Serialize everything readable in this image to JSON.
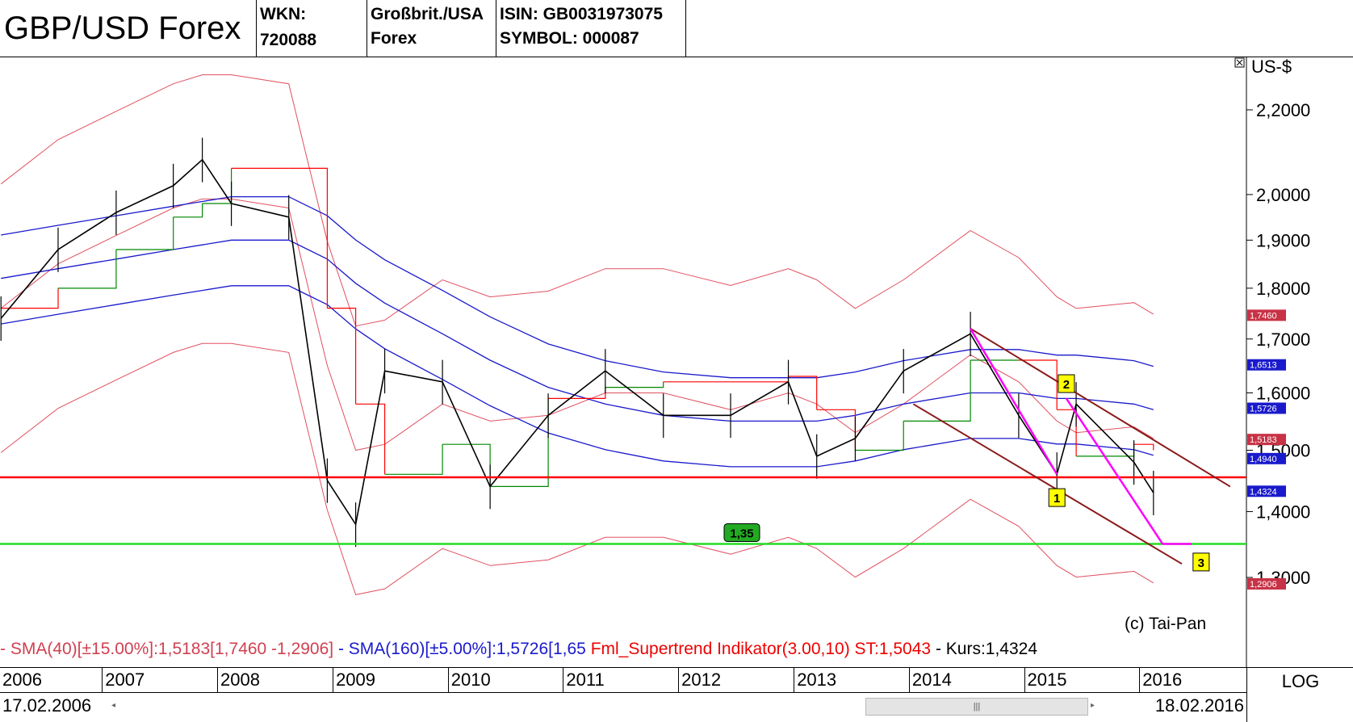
{
  "header": {
    "title": "GBP/USD Forex",
    "wkn": "WKN: 720088",
    "country_line1": "Großbrit./USA",
    "country_line2": "Forex",
    "isin": "ISIN: GB0031973075",
    "symbol": "SYMBOL: 000087"
  },
  "legend": {
    "sma40": "- SMA(40)[±15.00%]:1,5183[1,7460 -1,2906]",
    "sma160": "- SMA(160)[±5.00%]:1,5726[1,65",
    "supertrend": "Fml_Supertrend Indikator(3.00,10) ST:1,5043",
    "kurs": "- Kurs:1,4324"
  },
  "copyright": "(c) Tai-Pan",
  "x_axis": {
    "years": [
      "2006",
      "2007",
      "2008",
      "2009",
      "2010",
      "2011",
      "2012",
      "2013",
      "2014",
      "2015",
      "2016"
    ],
    "start_date": "17.02.2006",
    "end_date": "18.02.2016",
    "scale_label": "LOG"
  },
  "colors": {
    "price": "#000000",
    "sma40_band": "#e05060",
    "sma160_band": "#1a1acc",
    "supertrend_down": "#ff0000",
    "supertrend_up": "#008800",
    "support_red": "#ff0000",
    "support_green": "#22dd22",
    "channel": "#8b1a1a",
    "projection": "#ff00ff"
  },
  "chart_data": {
    "type": "line",
    "title": "GBP/USD Forex",
    "ylabel": "US-$",
    "yscale": "log",
    "ylim": [
      1.28,
      2.35
    ],
    "y_ticks": [
      "2,2000",
      "2,0000",
      "1,9000",
      "1,8000",
      "1,7000",
      "1,6000",
      "1,5000",
      "1,4000",
      "1,3000"
    ],
    "x": [
      "2006-02",
      "2006-08",
      "2007-02",
      "2007-08",
      "2007-11",
      "2008-02",
      "2008-08",
      "2008-12",
      "2009-03",
      "2009-06",
      "2009-12",
      "2010-05",
      "2010-11",
      "2011-05",
      "2011-11",
      "2012-06",
      "2012-12",
      "2013-03",
      "2013-07",
      "2013-12",
      "2014-07",
      "2014-12",
      "2015-04",
      "2015-06",
      "2015-12",
      "2016-02"
    ],
    "series": [
      {
        "name": "Kurs",
        "values": [
          1.74,
          1.88,
          1.96,
          2.02,
          2.08,
          1.98,
          1.95,
          1.45,
          1.38,
          1.64,
          1.62,
          1.44,
          1.56,
          1.64,
          1.56,
          1.56,
          1.62,
          1.49,
          1.52,
          1.64,
          1.71,
          1.56,
          1.46,
          1.58,
          1.48,
          1.43
        ]
      },
      {
        "name": "SMA(40)",
        "values": [
          1.76,
          1.85,
          1.91,
          1.97,
          1.99,
          1.99,
          1.97,
          1.65,
          1.5,
          1.51,
          1.58,
          1.55,
          1.56,
          1.6,
          1.6,
          1.57,
          1.6,
          1.58,
          1.53,
          1.58,
          1.67,
          1.62,
          1.55,
          1.53,
          1.54,
          1.52
        ]
      },
      {
        "name": "SMA(160)",
        "values": [
          1.82,
          1.84,
          1.86,
          1.88,
          1.89,
          1.9,
          1.9,
          1.86,
          1.81,
          1.77,
          1.71,
          1.66,
          1.61,
          1.58,
          1.56,
          1.55,
          1.55,
          1.55,
          1.56,
          1.58,
          1.6,
          1.6,
          1.59,
          1.59,
          1.58,
          1.57
        ]
      },
      {
        "name": "Supertrend",
        "values": [
          1.76,
          1.8,
          1.88,
          1.95,
          1.98,
          2.06,
          2.06,
          1.76,
          1.58,
          1.46,
          1.51,
          1.44,
          1.59,
          1.61,
          1.62,
          1.62,
          1.63,
          1.57,
          1.5,
          1.55,
          1.66,
          1.66,
          1.57,
          1.49,
          1.51,
          1.5
        ]
      }
    ],
    "markers": {
      "sma40_value": "1,5183",
      "sma40_upper": "1,7460",
      "sma40_lower": "1,2906",
      "sma160_value": "1,5726",
      "sma160_upper": "1,6513",
      "sma160_lower": "1,4940",
      "last_price": "1,4324"
    },
    "annotations": {
      "support_green_label": "1,35",
      "support_green_value": 1.35,
      "support_red_value": 1.455,
      "wave_labels": [
        "1",
        "2",
        "3"
      ]
    },
    "legend_position": "bottom",
    "grid": false
  }
}
